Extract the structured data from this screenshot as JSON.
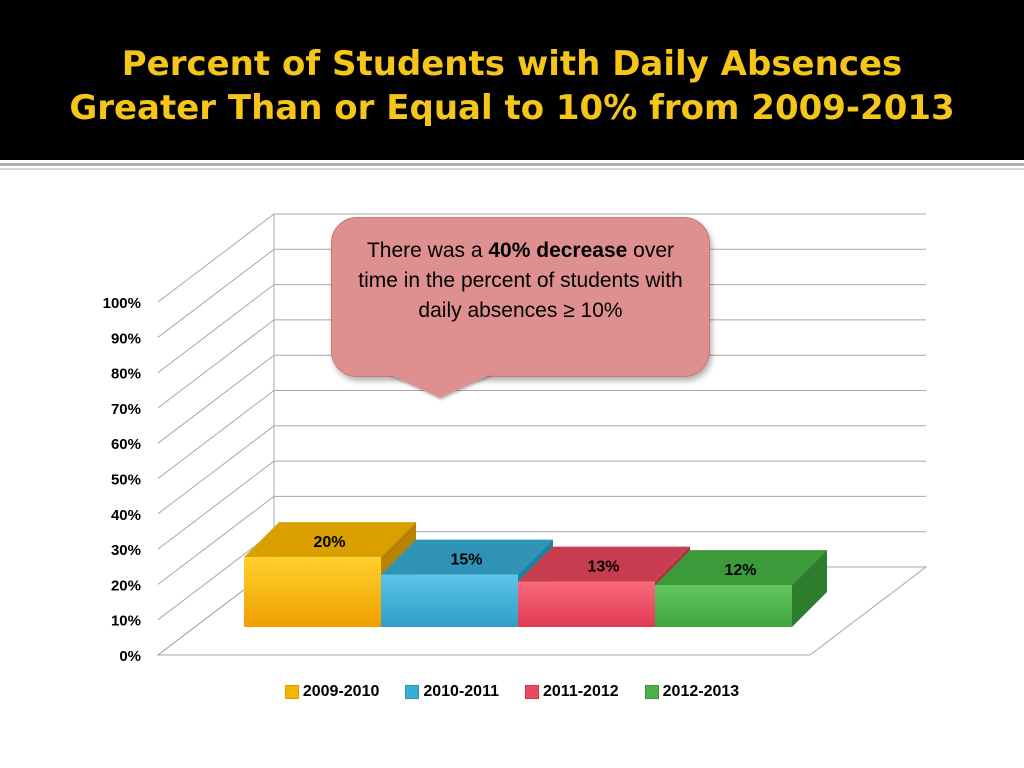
{
  "title": {
    "line1": "Percent of Students with Daily Absences",
    "line2": "Greater Than or Equal to 10% from 2009-2013"
  },
  "callout": {
    "text_before": "There was a ",
    "emphasis": "40% decrease",
    "text_after": " over time in the percent of students with daily absences ≥ 10%"
  },
  "chart_data": {
    "type": "bar",
    "categories": [
      "2009-2010",
      "2010-2011",
      "2011-2012",
      "2012-2013"
    ],
    "values": [
      20,
      15,
      13,
      12
    ],
    "data_labels": [
      "20%",
      "15%",
      "13%",
      "12%"
    ],
    "ylim": [
      0,
      100
    ],
    "y_ticks": [
      "0%",
      "10%",
      "20%",
      "30%",
      "40%",
      "50%",
      "60%",
      "70%",
      "80%",
      "90%",
      "100%"
    ],
    "grid": true,
    "legend_position": "bottom",
    "three_d": true,
    "colors": [
      "#f5b800",
      "#3aabd1",
      "#e84a5f",
      "#4cb04a"
    ]
  }
}
